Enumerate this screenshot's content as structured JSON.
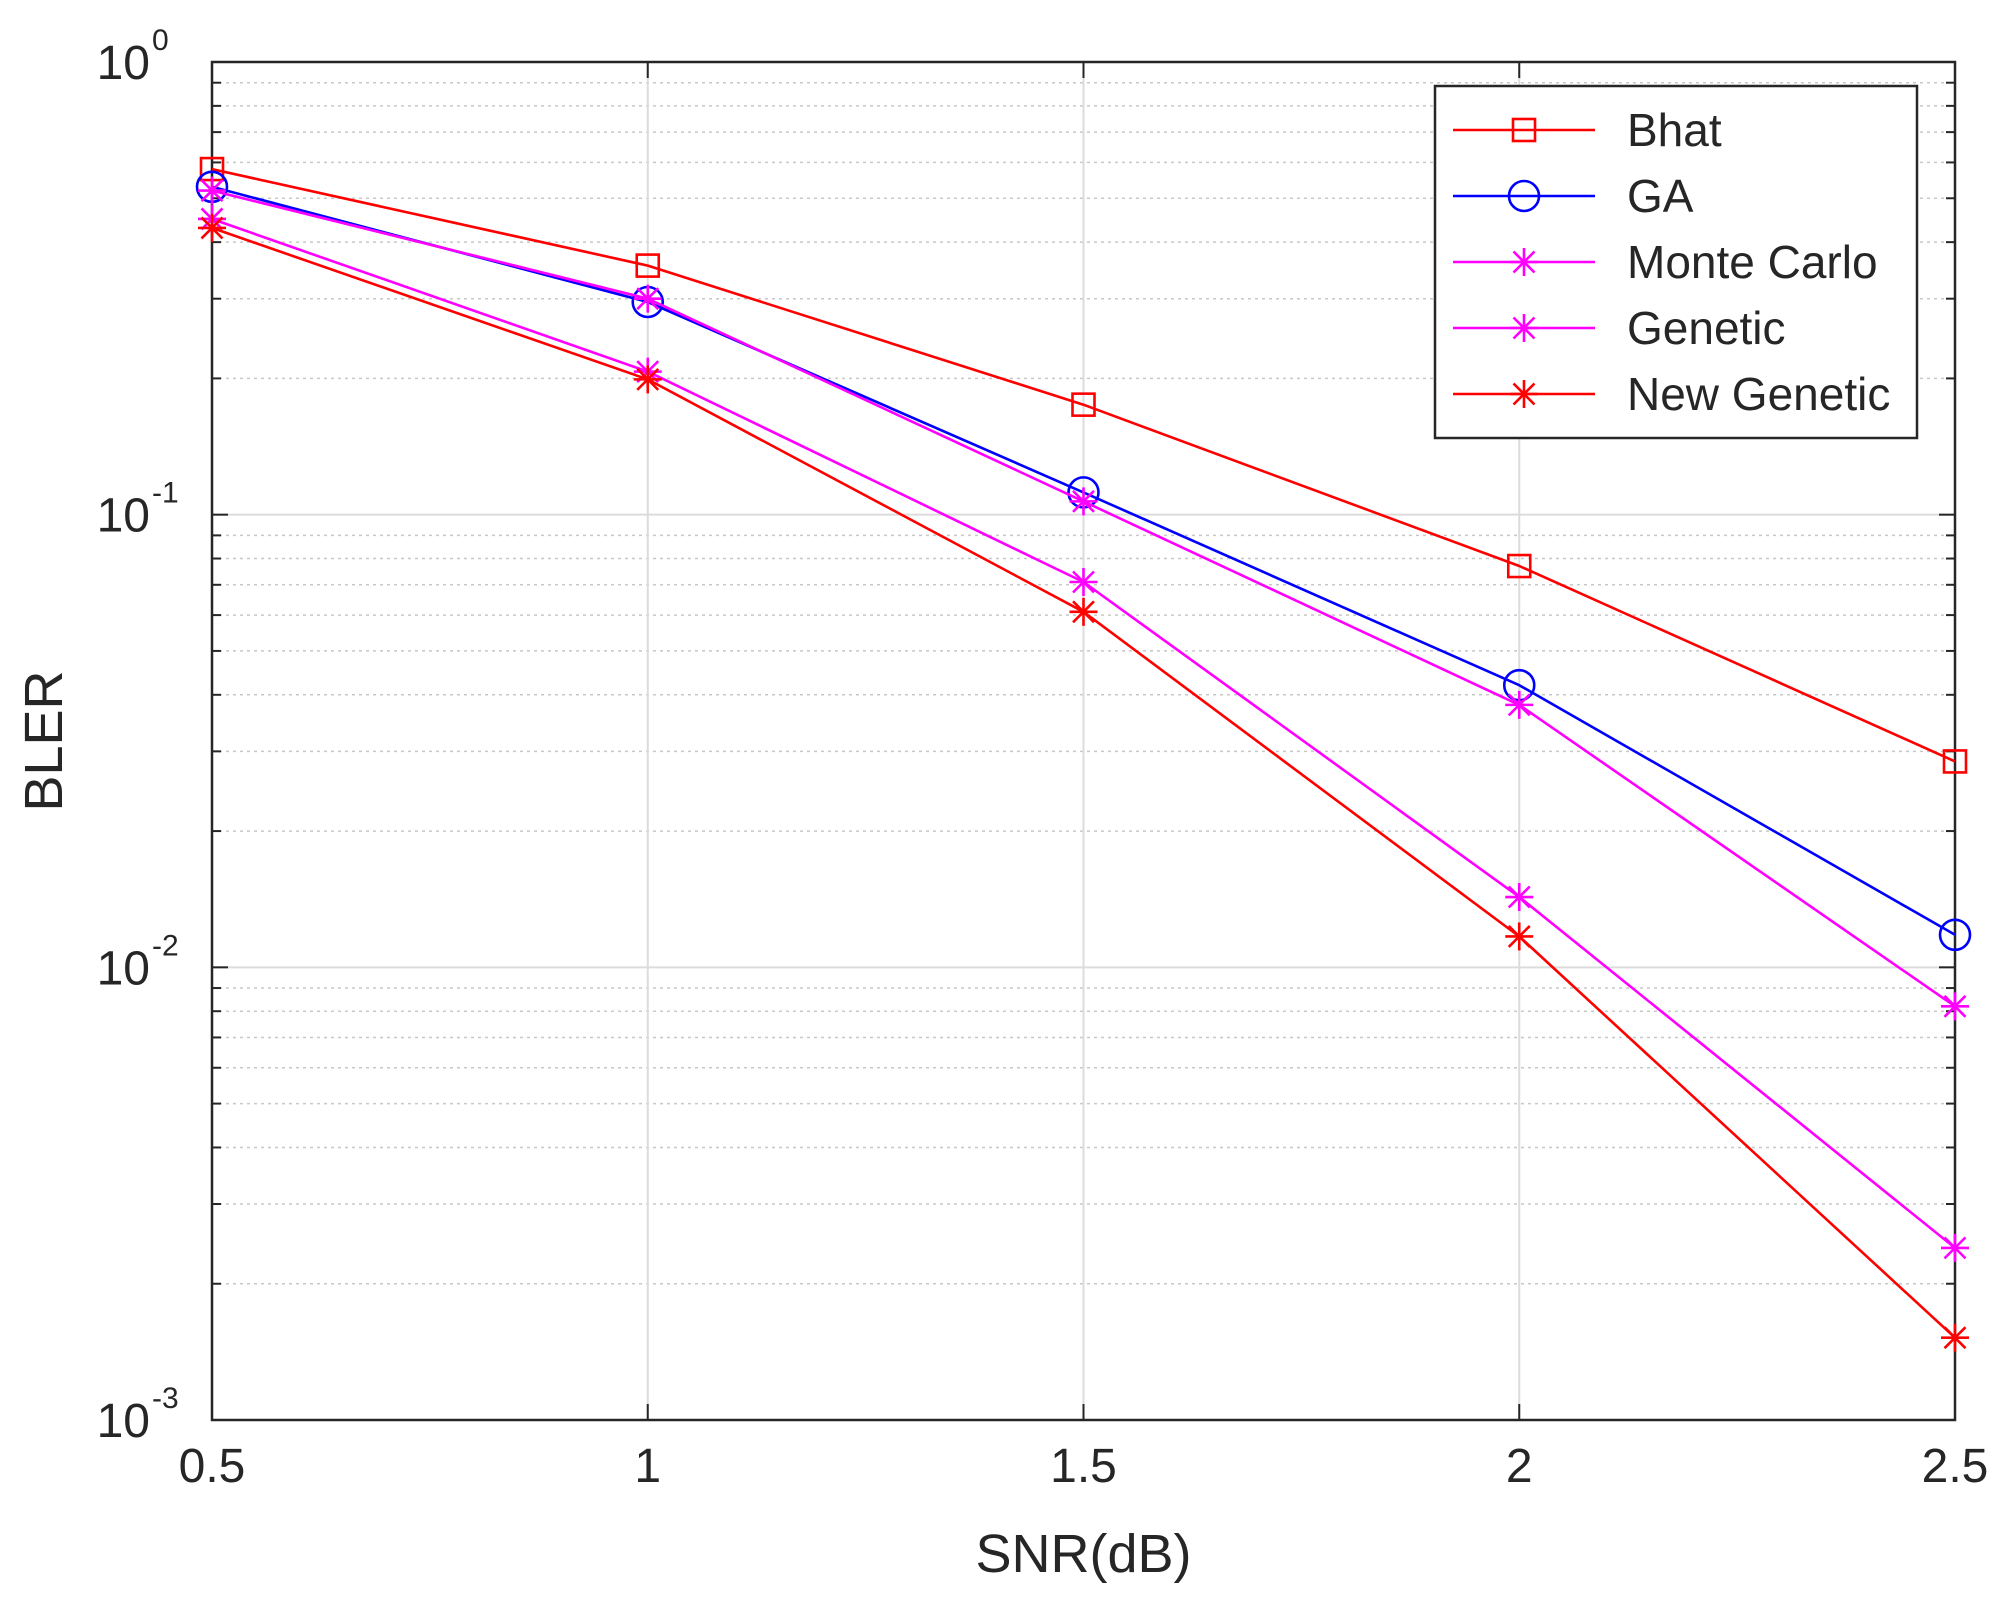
{
  "chart_data": {
    "type": "line",
    "title": "",
    "xlabel": "SNR(dB)",
    "ylabel": "BLER",
    "xlim": [
      0.5,
      2.5
    ],
    "ylim": [
      0.001,
      1
    ],
    "yscale": "log",
    "grid": true,
    "legend_position": "top-right",
    "x": [
      0.5,
      1,
      1.5,
      2,
      2.5
    ],
    "x_ticks": [
      {
        "value": 0.5,
        "label": "0.5"
      },
      {
        "value": 1,
        "label": "1"
      },
      {
        "value": 1.5,
        "label": "1.5"
      },
      {
        "value": 2,
        "label": "2"
      },
      {
        "value": 2.5,
        "label": "2.5"
      }
    ],
    "y_ticks": [
      {
        "value": 1,
        "base": "10",
        "exp": "0"
      },
      {
        "value": 0.1,
        "base": "10",
        "exp": "-1"
      },
      {
        "value": 0.01,
        "base": "10",
        "exp": "-2"
      },
      {
        "value": 0.001,
        "base": "10",
        "exp": "-3"
      }
    ],
    "series": [
      {
        "name": "Bhat",
        "color": "#ff0000",
        "marker": "square",
        "values": [
          0.58,
          0.355,
          0.175,
          0.077,
          0.0285
        ]
      },
      {
        "name": "GA",
        "color": "#0000ff",
        "marker": "circle",
        "values": [
          0.53,
          0.295,
          0.112,
          0.042,
          0.0118
        ]
      },
      {
        "name": "Monte Carlo",
        "color": "#ff00ff",
        "marker": "asterisk",
        "values": [
          0.52,
          0.3,
          0.107,
          0.038,
          0.0082
        ]
      },
      {
        "name": "Genetic",
        "color": "#ff00ff",
        "marker": "asterisk",
        "values": [
          0.45,
          0.207,
          0.071,
          0.0143,
          0.0024
        ]
      },
      {
        "name": "New Genetic",
        "color": "#ff0000",
        "marker": "asterisk",
        "values": [
          0.43,
          0.199,
          0.061,
          0.0117,
          0.00152
        ]
      }
    ]
  }
}
